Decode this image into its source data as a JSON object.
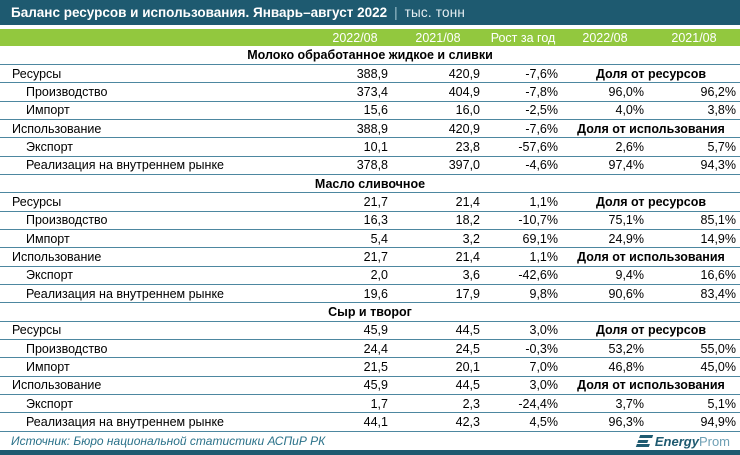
{
  "title_bar": {
    "title": "Баланс ресурсов и использования. Январь–август 2022",
    "separator": "|",
    "units": "тыс. тонн"
  },
  "chart_data": {
    "type": "table",
    "title": "Баланс ресурсов и использования. Январь–август 2022",
    "units": "тыс. тонн",
    "header_row": [
      "2022/08",
      "2021/08",
      "Рост за год",
      "2022/08",
      "2021/08"
    ],
    "sections": [
      {
        "name": "Молоко обработанное жидкое и сливки",
        "rows": [
          {
            "label": "Ресурсы",
            "level": 0,
            "y2022": "388,9",
            "y2021": "420,9",
            "growth": "-7,6%",
            "share_header": "Доля от ресурсов"
          },
          {
            "label": "Производство",
            "level": 1,
            "y2022": "373,4",
            "y2021": "404,9",
            "growth": "-7,8%",
            "share_2022": "96,0%",
            "share_2021": "96,2%"
          },
          {
            "label": "Импорт",
            "level": 1,
            "y2022": "15,6",
            "y2021": "16,0",
            "growth": "-2,5%",
            "share_2022": "4,0%",
            "share_2021": "3,8%"
          },
          {
            "label": "Использование",
            "level": 0,
            "y2022": "388,9",
            "y2021": "420,9",
            "growth": "-7,6%",
            "share_header": "Доля от использования"
          },
          {
            "label": "Экспорт",
            "level": 1,
            "y2022": "10,1",
            "y2021": "23,8",
            "growth": "-57,6%",
            "share_2022": "2,6%",
            "share_2021": "5,7%"
          },
          {
            "label": "Реализация на внутреннем рынке",
            "level": 1,
            "y2022": "378,8",
            "y2021": "397,0",
            "growth": "-4,6%",
            "share_2022": "97,4%",
            "share_2021": "94,3%"
          }
        ]
      },
      {
        "name": "Масло сливочное",
        "rows": [
          {
            "label": "Ресурсы",
            "level": 0,
            "y2022": "21,7",
            "y2021": "21,4",
            "growth": "1,1%",
            "share_header": "Доля от ресурсов"
          },
          {
            "label": "Производство",
            "level": 1,
            "y2022": "16,3",
            "y2021": "18,2",
            "growth": "-10,7%",
            "share_2022": "75,1%",
            "share_2021": "85,1%"
          },
          {
            "label": "Импорт",
            "level": 1,
            "y2022": "5,4",
            "y2021": "3,2",
            "growth": "69,1%",
            "share_2022": "24,9%",
            "share_2021": "14,9%"
          },
          {
            "label": "Использование",
            "level": 0,
            "y2022": "21,7",
            "y2021": "21,4",
            "growth": "1,1%",
            "share_header": "Доля от использования"
          },
          {
            "label": "Экспорт",
            "level": 1,
            "y2022": "2,0",
            "y2021": "3,6",
            "growth": "-42,6%",
            "share_2022": "9,4%",
            "share_2021": "16,6%"
          },
          {
            "label": "Реализация на внутреннем рынке",
            "level": 1,
            "y2022": "19,6",
            "y2021": "17,9",
            "growth": "9,8%",
            "share_2022": "90,6%",
            "share_2021": "83,4%"
          }
        ]
      },
      {
        "name": "Сыр и творог",
        "rows": [
          {
            "label": "Ресурсы",
            "level": 0,
            "y2022": "45,9",
            "y2021": "44,5",
            "growth": "3,0%",
            "share_header": "Доля от ресурсов"
          },
          {
            "label": "Производство",
            "level": 1,
            "y2022": "24,4",
            "y2021": "24,5",
            "growth": "-0,3%",
            "share_2022": "53,2%",
            "share_2021": "55,0%"
          },
          {
            "label": "Импорт",
            "level": 1,
            "y2022": "21,5",
            "y2021": "20,1",
            "growth": "7,0%",
            "share_2022": "46,8%",
            "share_2021": "45,0%"
          },
          {
            "label": "Использование",
            "level": 0,
            "y2022": "45,9",
            "y2021": "44,5",
            "growth": "3,0%",
            "share_header": "Доля от использования"
          },
          {
            "label": "Экспорт",
            "level": 1,
            "y2022": "1,7",
            "y2021": "2,3",
            "growth": "-24,4%",
            "share_2022": "3,7%",
            "share_2021": "5,1%"
          },
          {
            "label": "Реализация на внутреннем рынке",
            "level": 1,
            "y2022": "44,1",
            "y2021": "42,3",
            "growth": "4,5%",
            "share_2022": "96,3%",
            "share_2021": "94,9%"
          }
        ]
      }
    ]
  },
  "footer": {
    "source": "Источник: Бюро национальной статистики АСПиР РК",
    "logo_bold": "Energy",
    "logo_light": "Prom"
  },
  "colors": {
    "title_bar_bg": "#1e5a70",
    "header_row_bg": "#92c83e",
    "row_border": "#4d87a0",
    "footer_text": "#2a7189",
    "logo_dark": "#1e5a70",
    "logo_light": "#6fa0b5"
  }
}
